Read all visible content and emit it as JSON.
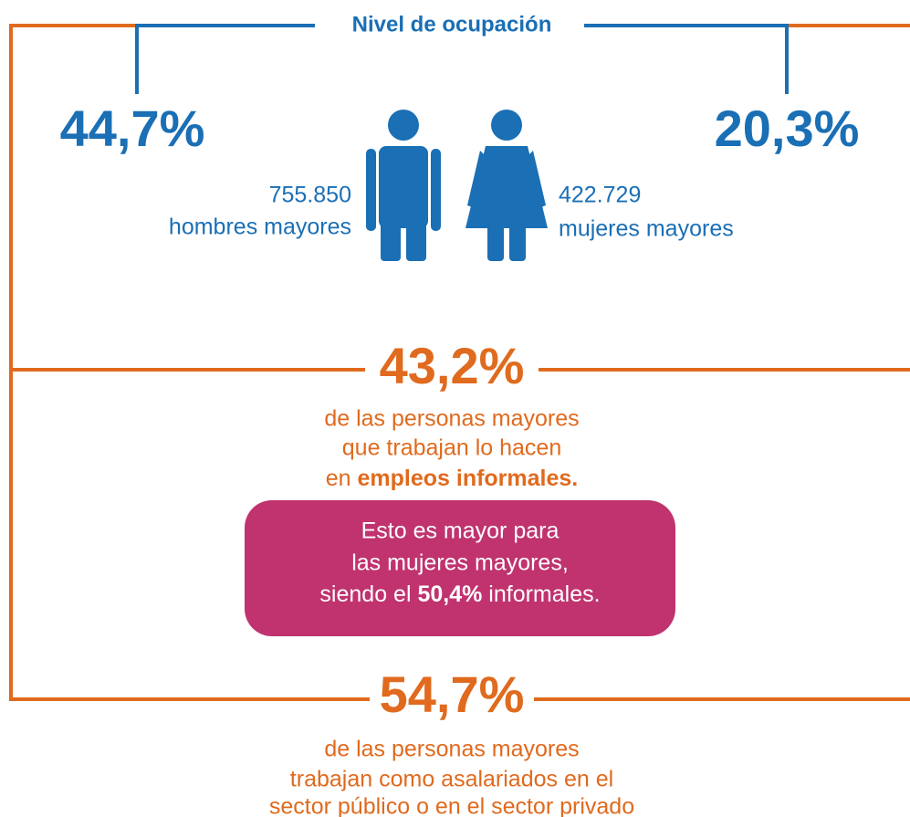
{
  "title": "Nivel de ocupación",
  "men": {
    "percent": "44,7%",
    "count": "755.850",
    "label": "hombres mayores"
  },
  "women": {
    "percent": "20,3%",
    "count": "422.729",
    "label": "mujeres mayores"
  },
  "informal": {
    "percent": "43,2%",
    "lines": [
      "de las personas mayores",
      "que trabajan lo hacen"
    ],
    "line3_prefix": "en ",
    "line3_bold": "empleos informales."
  },
  "note": {
    "lines": [
      "Esto es mayor para",
      "las mujeres mayores,"
    ],
    "line3_prefix": "siendo el ",
    "line3_bold": "50,4%",
    "line3_suffix": " informales."
  },
  "salaried": {
    "percent": "54,7%",
    "lines": [
      "de las personas mayores",
      "trabajan como asalariados en el",
      "sector público o en el sector privado"
    ]
  }
}
